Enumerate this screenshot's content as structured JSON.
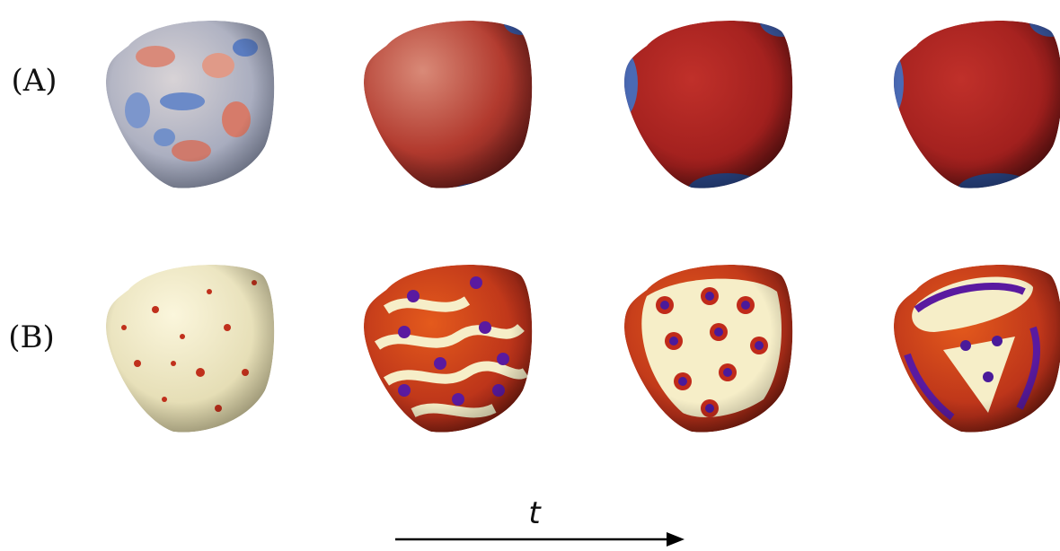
{
  "rows": [
    {
      "label": "(A)"
    },
    {
      "label": "(B)"
    }
  ],
  "axis": {
    "label": "t"
  }
}
